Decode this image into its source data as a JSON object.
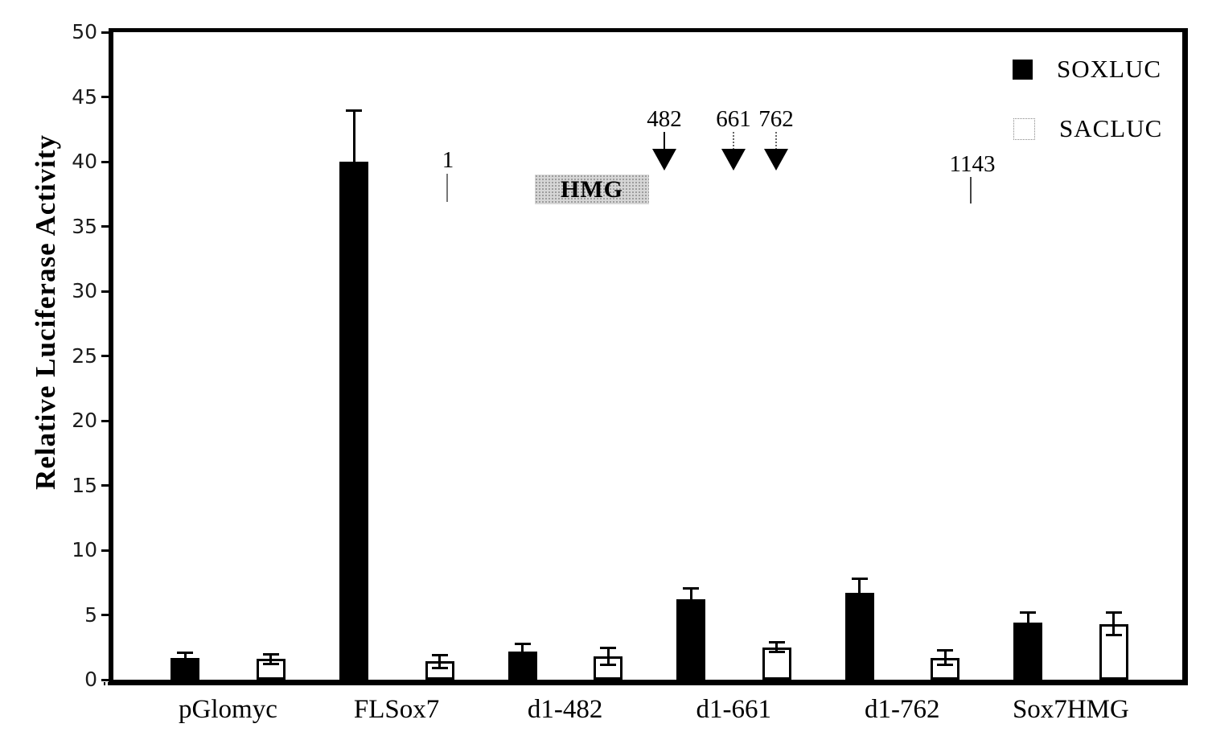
{
  "figure": {
    "background": "#ffffff"
  },
  "chart_data": {
    "type": "bar",
    "title": "",
    "xlabel": "",
    "ylabel": "Relative Luciferase Activity",
    "ylim": [
      0,
      50
    ],
    "yticks": [
      0,
      5,
      10,
      15,
      20,
      25,
      30,
      35,
      40,
      45,
      50
    ],
    "grid": false,
    "legend_position": "top-right",
    "categories": [
      "pGlomyc",
      "FLSox7",
      "d1-482",
      "d1-661",
      "d1-762",
      "Sox7HMG"
    ],
    "series": [
      {
        "name": "SOXLUC",
        "fill": "#000000",
        "values": [
          1.7,
          40.0,
          2.2,
          6.2,
          6.7,
          4.4
        ],
        "errors": [
          0.4,
          4.0,
          0.6,
          0.9,
          1.1,
          0.8
        ]
      },
      {
        "name": "SACLUC",
        "fill": "#ffffff",
        "values": [
          1.6,
          1.4,
          1.8,
          2.5,
          1.7,
          4.3
        ],
        "errors": [
          0.4,
          0.5,
          0.7,
          0.4,
          0.6,
          0.9
        ]
      }
    ],
    "schematic": {
      "start_label": "1",
      "domain_label": "HMG",
      "deletion_points": [
        {
          "label": "482",
          "stem": "solid"
        },
        {
          "label": "661",
          "stem": "dotted"
        },
        {
          "label": "762",
          "stem": "dotted"
        }
      ],
      "end_label": "1143"
    },
    "colors": {
      "axis": "#000000",
      "soxluc_bar": "#000000",
      "sacluc_bar": "#ffffff",
      "hmg_box_fill": "#d6d6d6"
    }
  }
}
